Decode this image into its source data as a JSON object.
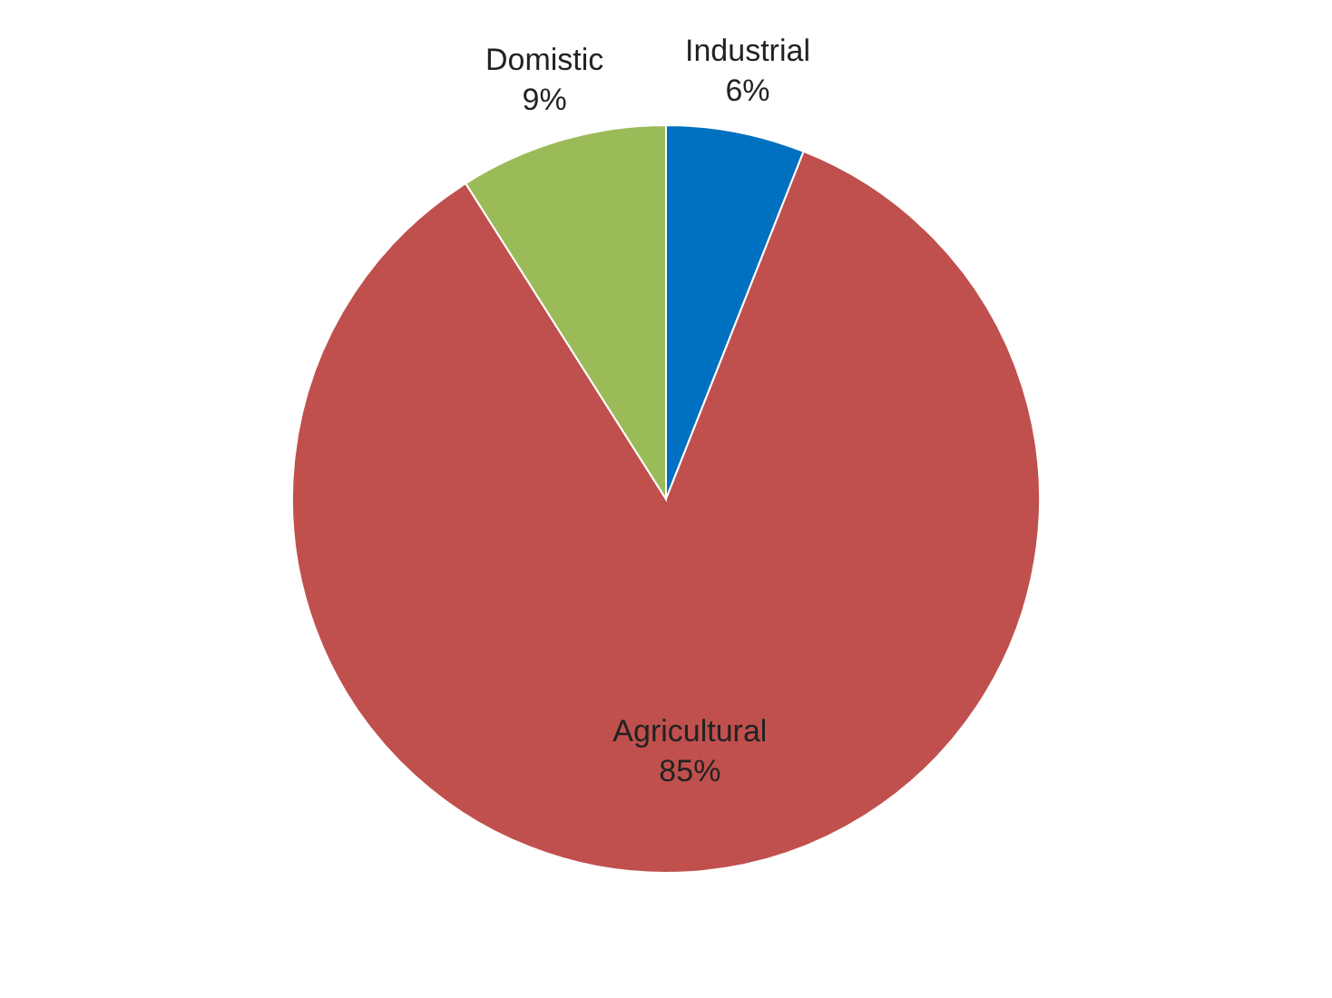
{
  "chart_data": {
    "type": "pie",
    "categories": [
      "Industrial",
      "Agricultural",
      "Domistic"
    ],
    "values": [
      6,
      85,
      9
    ],
    "colors": [
      "#0070c0",
      "#c0504d",
      "#9bbb59"
    ],
    "data_labels": true,
    "value_labels": [
      "6%",
      "85%",
      "9%"
    ],
    "legend": false
  }
}
